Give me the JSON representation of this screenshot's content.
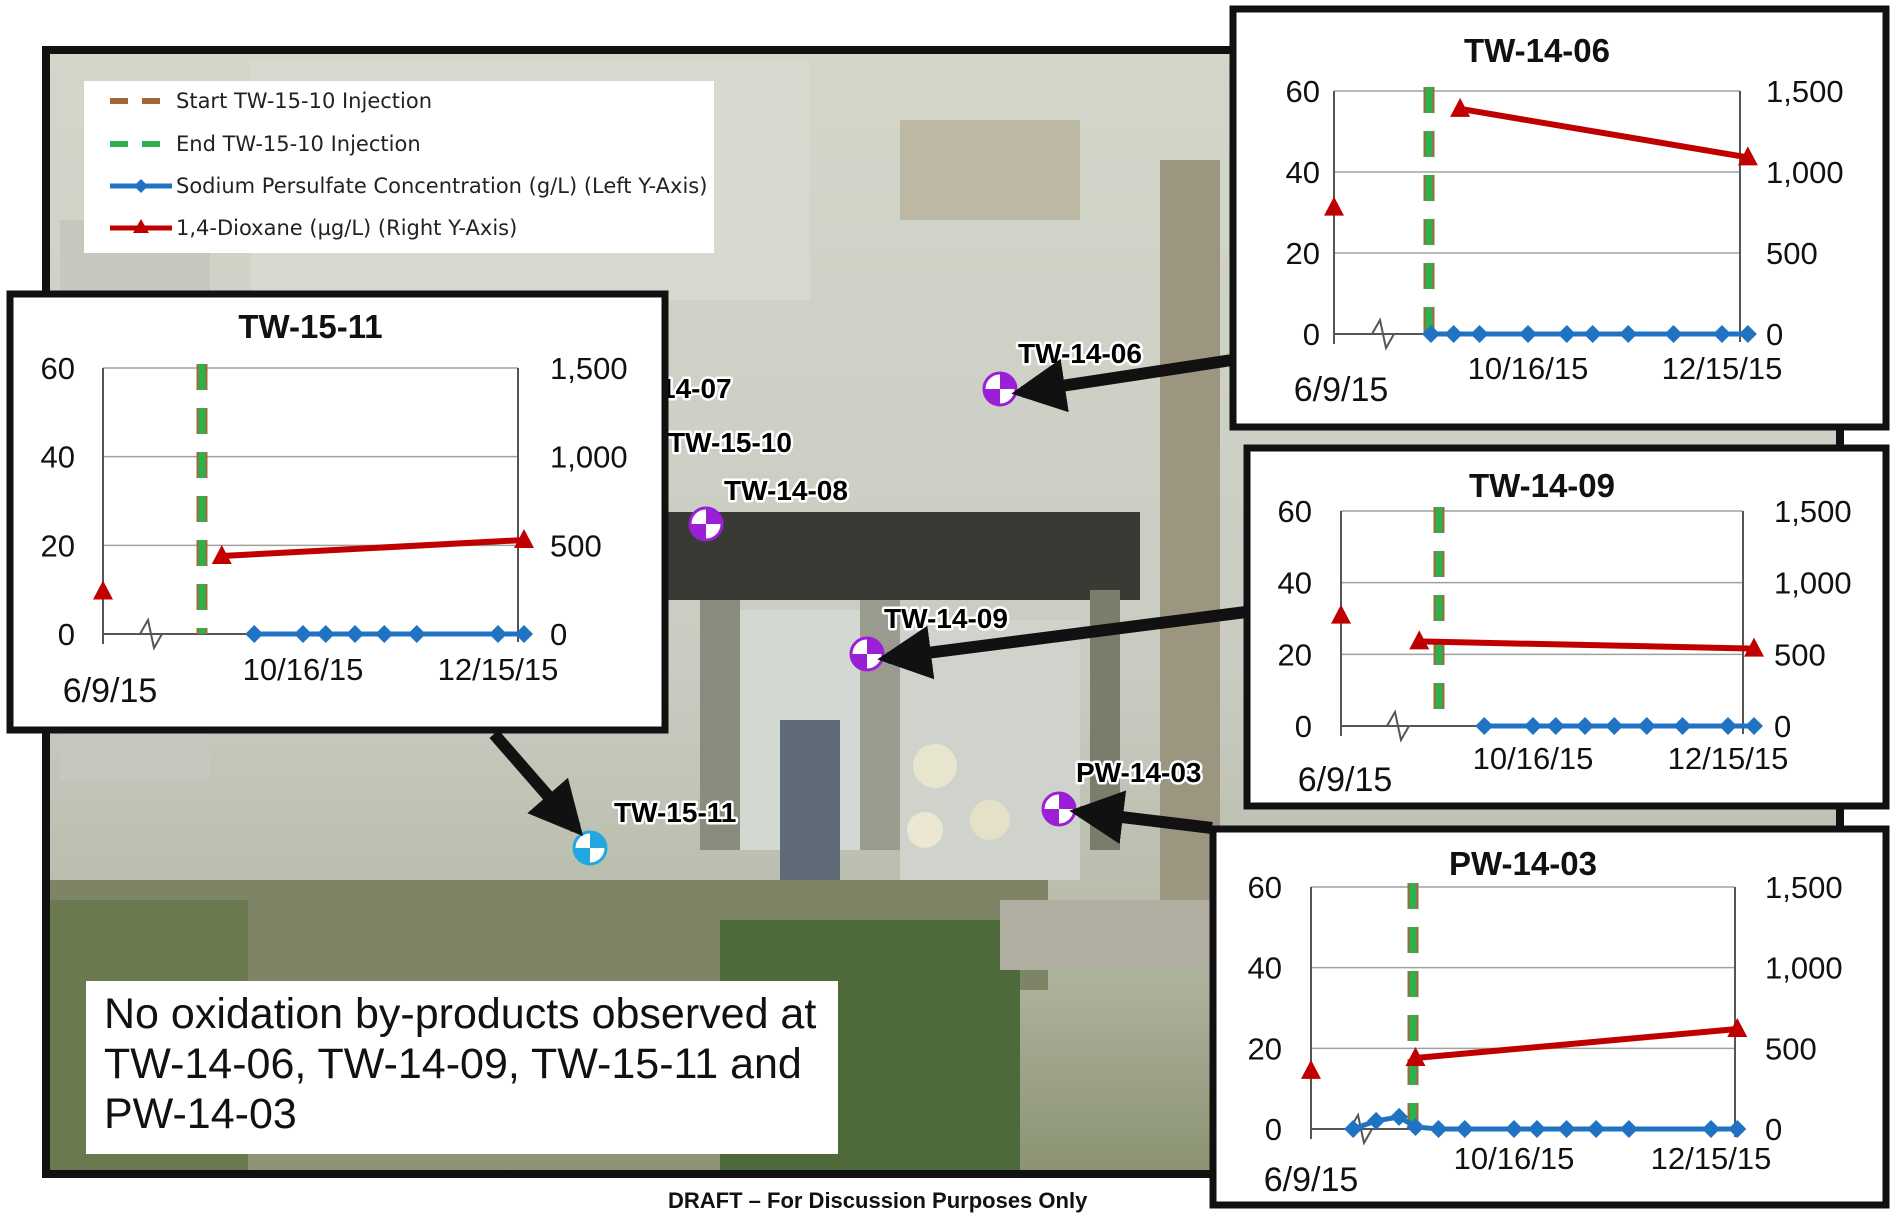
{
  "map": {
    "wells": [
      {
        "id": "TW-14-06",
        "label": "TW-14-06",
        "type": "monitoring"
      },
      {
        "id": "TW-14-07",
        "label": "14-07",
        "type": "monitoring"
      },
      {
        "id": "TW-15-10",
        "label": "TW-15-10",
        "type": "injection"
      },
      {
        "id": "TW-14-08",
        "label": "TW-14-08",
        "type": "monitoring"
      },
      {
        "id": "TW-14-09",
        "label": "TW-14-09",
        "type": "monitoring"
      },
      {
        "id": "PW-14-03",
        "label": "PW-14-03",
        "type": "monitoring"
      },
      {
        "id": "TW-15-11",
        "label": "TW-15-11",
        "type": "new-well"
      }
    ],
    "note": "No oxidation by-products observed at TW-14-06, TW-14-09, TW-15-11 and PW-14-03",
    "footer": "DRAFT – For Discussion Purposes Only"
  },
  "legend": {
    "items": [
      {
        "label": "Start TW-15-10 Injection",
        "color": "#a0683a",
        "style": "dashed"
      },
      {
        "label": "End TW-15-10 Injection",
        "color": "#2bb24c",
        "style": "dashed"
      },
      {
        "label": "Sodium Persulfate Concentration (g/L) (Left Y-Axis)",
        "color": "#1f73c2",
        "style": "line-diamond"
      },
      {
        "label": "1,4-Dioxane (µg/L) (Right Y-Axis)",
        "color": "#c00000",
        "style": "line-triangle"
      }
    ]
  },
  "colors": {
    "persulfate": "#1f73c2",
    "dioxane": "#c00000",
    "start_injection": "#a0683a",
    "end_injection": "#2bb24c",
    "well_marker": "#9b1fd6",
    "new_well_marker": "#22a7e0"
  },
  "chart_data": [
    {
      "type": "line",
      "title": "TW-14-06",
      "y_left": {
        "range": [
          0,
          60
        ],
        "ticks": [
          "0",
          "20",
          "40",
          "60"
        ]
      },
      "y_right": {
        "range": [
          0,
          1500
        ],
        "ticks": [
          "0",
          "500",
          "1,000",
          "1,500"
        ]
      },
      "x_ticks": [
        "6/9/15",
        "10/16/15",
        "12/15/15"
      ],
      "axis_break": true,
      "injection_start": "2015-09-03",
      "injection_end": "2015-09-03",
      "series": [
        {
          "name": "Sodium Persulfate Concentration (g/L)",
          "axis": "left",
          "points": [
            [
              "2015-09-16",
              0
            ],
            [
              "2015-09-23",
              0
            ],
            [
              "2015-10-01",
              0
            ],
            [
              "2015-10-16",
              0
            ],
            [
              "2015-10-28",
              0
            ],
            [
              "2015-11-05",
              0
            ],
            [
              "2015-11-16",
              0
            ],
            [
              "2015-11-30",
              0
            ],
            [
              "2015-12-15",
              0
            ],
            [
              "2015-12-23",
              0
            ]
          ]
        },
        {
          "name": "1,4-Dioxane (µg/L)",
          "axis": "right",
          "points": [
            [
              "2015-09-25",
              1390
            ],
            [
              "2015-12-23",
              1090
            ]
          ],
          "baseline": [
            "2015-06-09",
            780
          ]
        }
      ]
    },
    {
      "type": "line",
      "title": "TW-15-11",
      "y_left": {
        "range": [
          0,
          60
        ],
        "ticks": [
          "0",
          "20",
          "40",
          "60"
        ]
      },
      "y_right": {
        "range": [
          0,
          1500
        ],
        "ticks": [
          "0",
          "500",
          "1,000",
          "1,500"
        ]
      },
      "x_ticks": [
        "6/9/15",
        "10/16/15",
        "12/15/15"
      ],
      "axis_break": true,
      "injection_start": "2015-08-30",
      "injection_end": "2015-08-30",
      "series": [
        {
          "name": "Sodium Persulfate Concentration (g/L)",
          "axis": "left",
          "points": [
            [
              "2015-10-01",
              0
            ],
            [
              "2015-10-16",
              0
            ],
            [
              "2015-10-23",
              0
            ],
            [
              "2015-11-01",
              0
            ],
            [
              "2015-11-10",
              0
            ],
            [
              "2015-11-20",
              0
            ],
            [
              "2015-12-15",
              0
            ],
            [
              "2015-12-23",
              0
            ]
          ]
        },
        {
          "name": "1,4-Dioxane (µg/L)",
          "axis": "right",
          "points": [
            [
              "2015-09-21",
              440
            ],
            [
              "2015-12-23",
              530
            ]
          ],
          "baseline": [
            "2015-06-09",
            240
          ]
        }
      ]
    },
    {
      "type": "line",
      "title": "TW-14-09",
      "y_left": {
        "range": [
          0,
          60
        ],
        "ticks": [
          "0",
          "20",
          "40",
          "60"
        ]
      },
      "y_right": {
        "range": [
          0,
          1500
        ],
        "ticks": [
          "0",
          "500",
          "1,000",
          "1,500"
        ]
      },
      "x_ticks": [
        "6/9/15",
        "10/16/15",
        "12/15/15"
      ],
      "axis_break": true,
      "injection_start": "2015-08-30",
      "injection_end": "2015-08-30",
      "series": [
        {
          "name": "Sodium Persulfate Concentration (g/L)",
          "axis": "left",
          "points": [
            [
              "2015-10-01",
              0
            ],
            [
              "2015-10-16",
              0
            ],
            [
              "2015-10-23",
              0
            ],
            [
              "2015-11-01",
              0
            ],
            [
              "2015-11-10",
              0
            ],
            [
              "2015-11-20",
              0
            ],
            [
              "2015-12-01",
              0
            ],
            [
              "2015-12-15",
              0
            ],
            [
              "2015-12-23",
              0
            ]
          ]
        },
        {
          "name": "1,4-Dioxane (µg/L)",
          "axis": "right",
          "points": [
            [
              "2015-09-11",
              590
            ],
            [
              "2015-12-23",
              540
            ]
          ],
          "baseline": [
            "2015-06-09",
            770
          ]
        }
      ]
    },
    {
      "type": "line",
      "title": "PW-14-03",
      "y_left": {
        "range": [
          0,
          60
        ],
        "ticks": [
          "0",
          "20",
          "40",
          "60"
        ]
      },
      "y_right": {
        "range": [
          0,
          1500
        ],
        "ticks": [
          "0",
          "500",
          "1,000",
          "1,500"
        ]
      },
      "x_ticks": [
        "6/9/15",
        "10/16/15",
        "12/15/15"
      ],
      "axis_break": true,
      "injection_start": "2015-08-28",
      "injection_end": "2015-08-28",
      "series": [
        {
          "name": "Sodium Persulfate Concentration (g/L)",
          "axis": "left",
          "points": [
            [
              "2015-08-28",
              0
            ],
            [
              "2015-09-04",
              2
            ],
            [
              "2015-09-11",
              3
            ],
            [
              "2015-09-16",
              0.5
            ],
            [
              "2015-09-23",
              0
            ],
            [
              "2015-10-01",
              0
            ],
            [
              "2015-10-16",
              0
            ],
            [
              "2015-10-23",
              0
            ],
            [
              "2015-11-01",
              0
            ],
            [
              "2015-11-10",
              0
            ],
            [
              "2015-11-20",
              0
            ],
            [
              "2015-12-15",
              0
            ],
            [
              "2015-12-23",
              0
            ]
          ]
        },
        {
          "name": "1,4-Dioxane (µg/L)",
          "axis": "right",
          "points": [
            [
              "2015-09-16",
              440
            ],
            [
              "2015-12-23",
              620
            ]
          ],
          "baseline": [
            "2015-06-09",
            360
          ]
        }
      ]
    }
  ]
}
